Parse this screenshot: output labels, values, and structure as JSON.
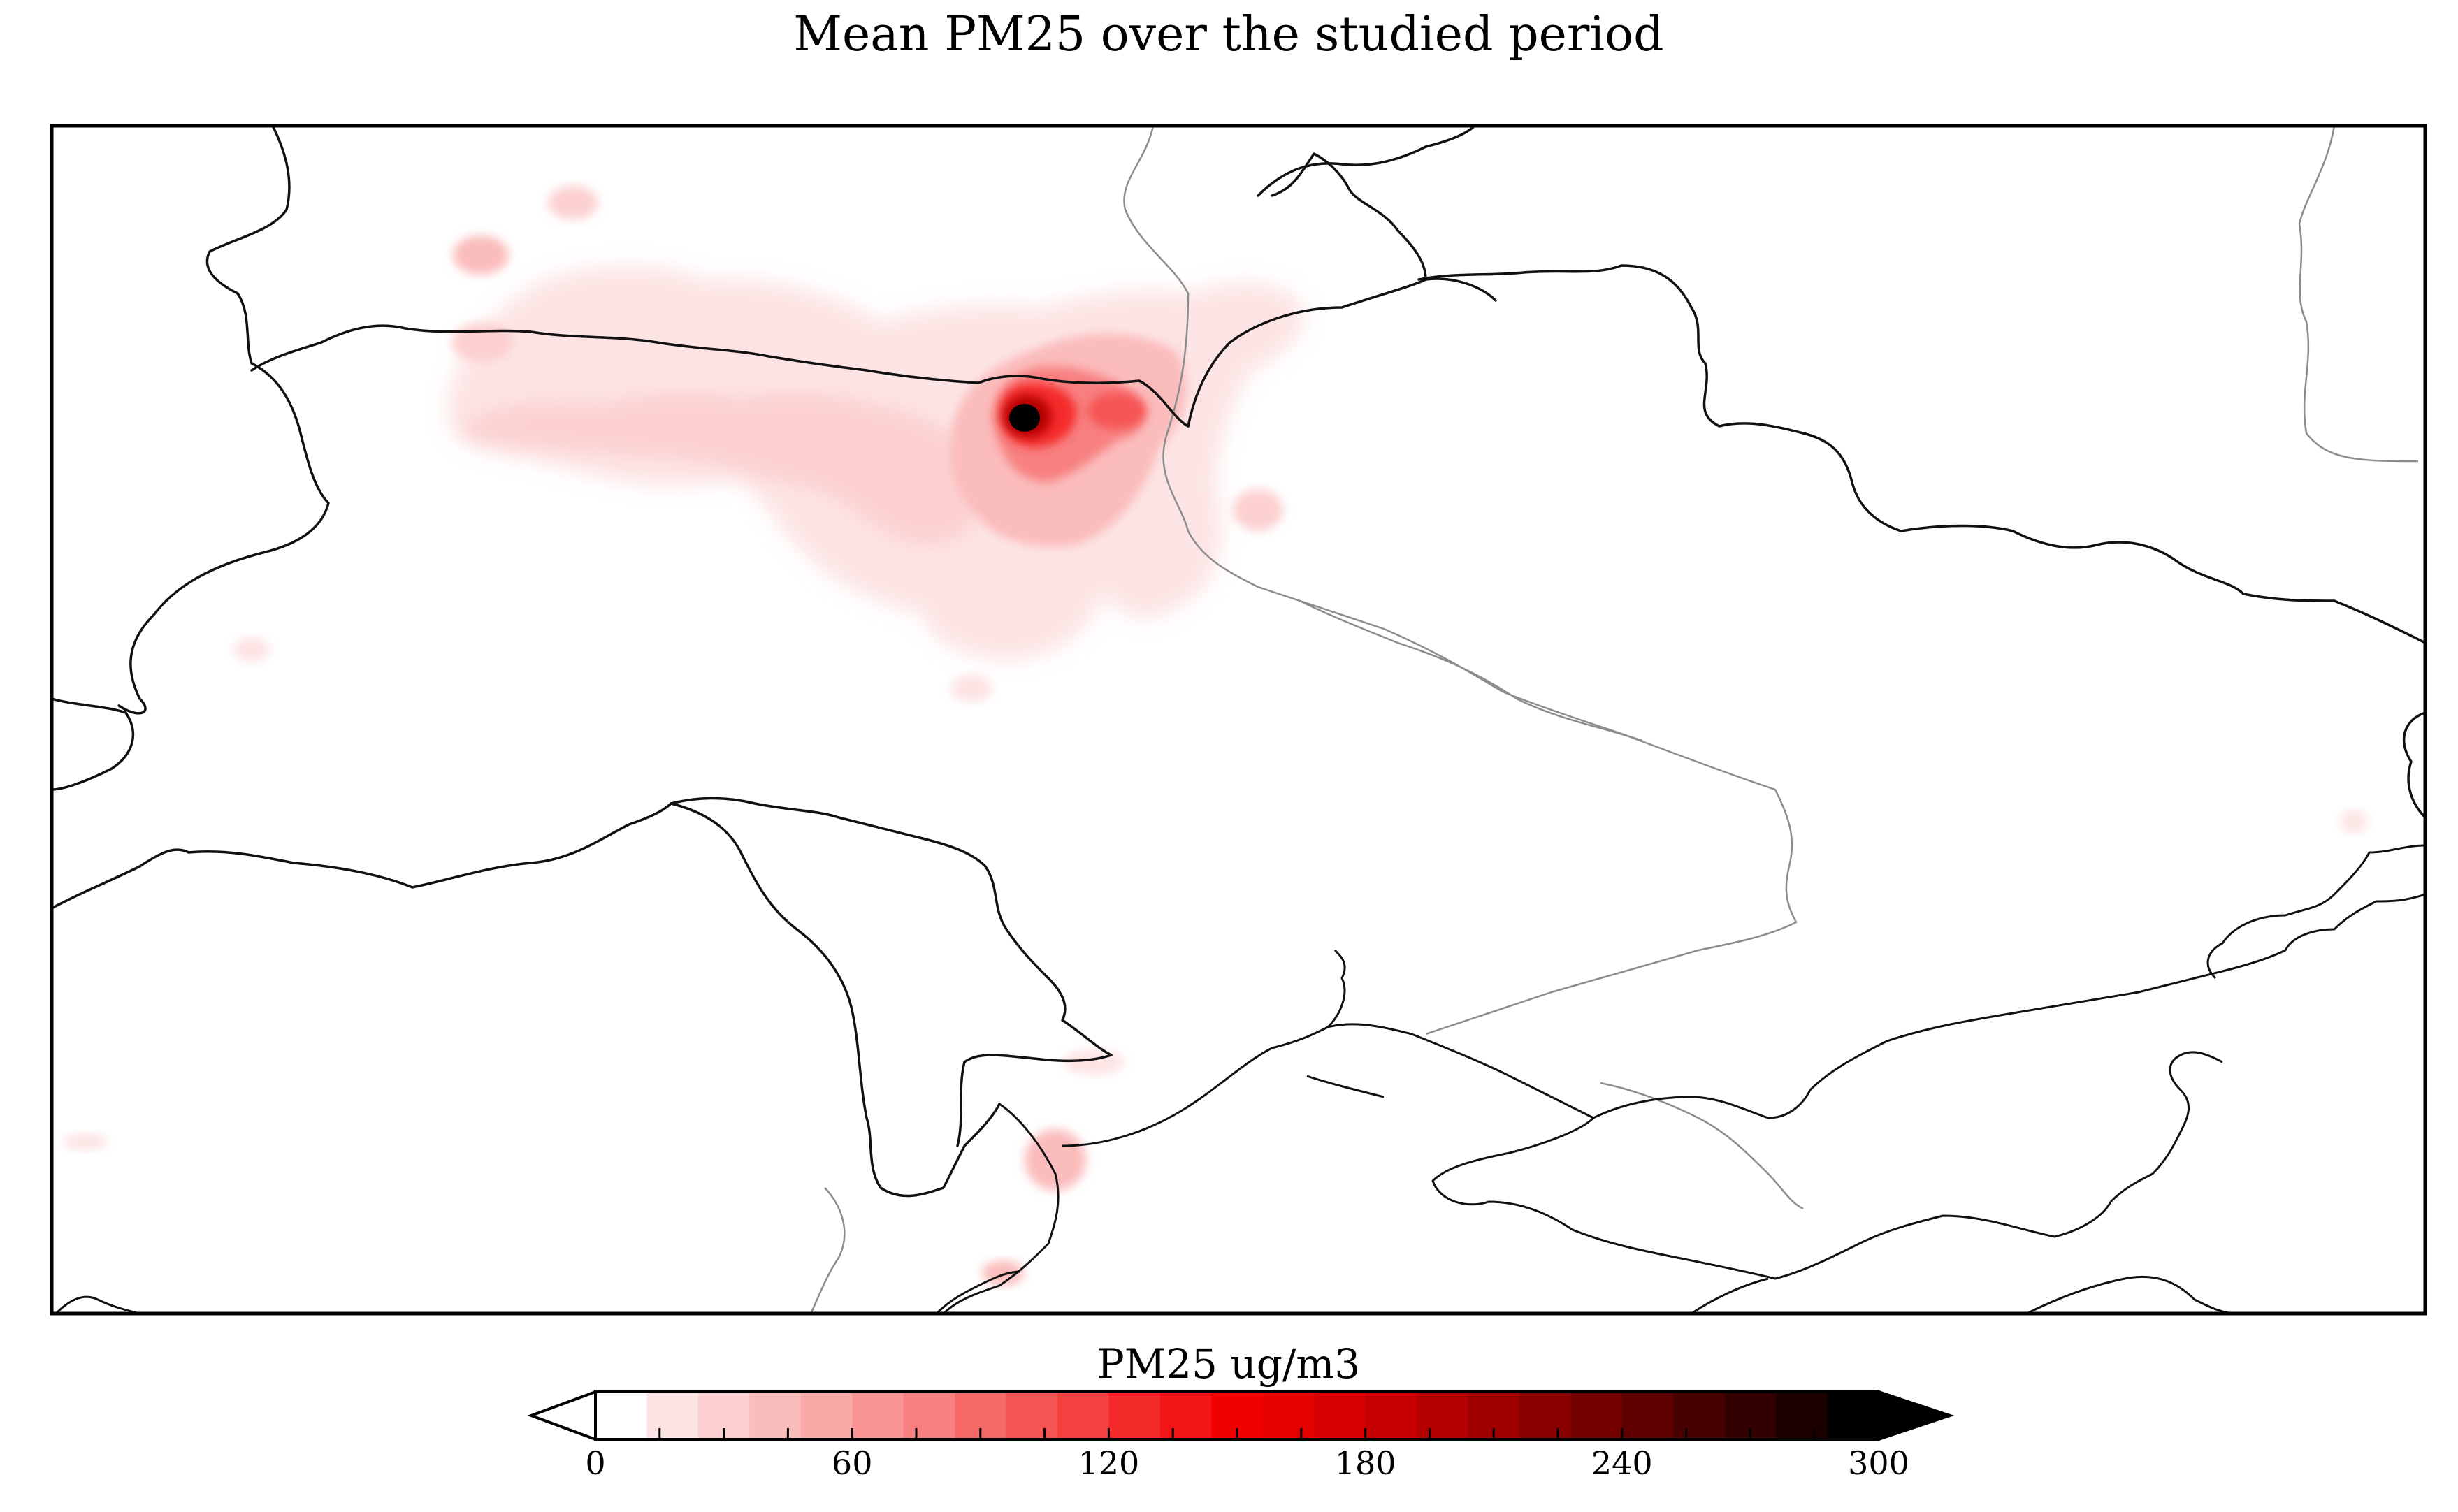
{
  "title": "Mean PM25 over the studied period",
  "colorbar": {
    "label": "PM25 ug/m3",
    "min": 0,
    "max": 300,
    "step": 15,
    "ticks": [
      {
        "value": 0,
        "label": "0"
      },
      {
        "value": 60,
        "label": "60"
      },
      {
        "value": 120,
        "label": "120"
      },
      {
        "value": 180,
        "label": "180"
      },
      {
        "value": 240,
        "label": "240"
      },
      {
        "value": 300,
        "label": "300"
      }
    ],
    "colors": [
      "#ffffff",
      "#fde4e4",
      "#fcd0d0",
      "#fbbcbc",
      "#faa8a8",
      "#f99494",
      "#f88080",
      "#f76a6a",
      "#f65555",
      "#f54040",
      "#f42a2a",
      "#f31515",
      "#f20000",
      "#e50000",
      "#d60000",
      "#c60000",
      "#b40000",
      "#a00000",
      "#8a0000",
      "#740000",
      "#5e0000",
      "#480000",
      "#320000",
      "#1c0000",
      "#000000"
    ],
    "under_arrow": "hollow",
    "over_arrow": "filled"
  }
}
